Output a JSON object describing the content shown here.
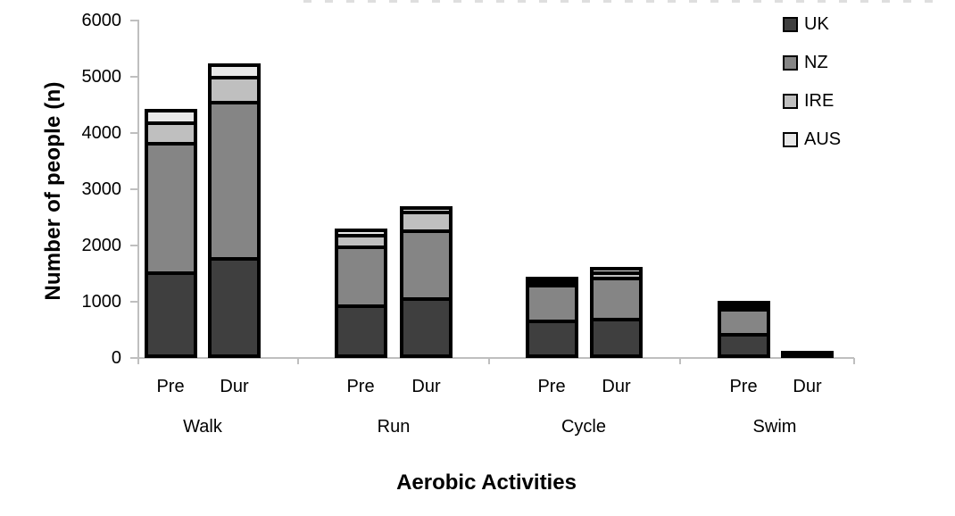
{
  "chart_data": {
    "type": "bar",
    "stacked": true,
    "title": "",
    "xlabel": "Aerobic Activities",
    "ylabel": "Number of people (n)",
    "ylim": [
      0,
      6000
    ],
    "yticks": [
      0,
      1000,
      2000,
      3000,
      4000,
      5000,
      6000
    ],
    "grid": false,
    "legend_position": "top-right",
    "categories": [
      "Walk",
      "Run",
      "Cycle",
      "Swim"
    ],
    "conditions": [
      "Pre",
      "Dur"
    ],
    "bar_order": [
      "Walk Pre",
      "Walk Dur",
      "Run Pre",
      "Run Dur",
      "Cycle Pre",
      "Cycle Dur",
      "Swim Pre",
      "Swim Dur"
    ],
    "series": [
      {
        "name": "UK",
        "color": "#3f3f3f",
        "values": [
          1480,
          1730,
          890,
          1010,
          620,
          650,
          385,
          40
        ]
      },
      {
        "name": "NZ",
        "color": "#858585",
        "values": [
          2290,
          2770,
          1050,
          1210,
          630,
          730,
          440,
          0
        ]
      },
      {
        "name": "IRE",
        "color": "#bfbfbf",
        "values": [
          370,
          450,
          200,
          330,
          65,
          90,
          70,
          0
        ]
      },
      {
        "name": "AUS",
        "color": "#e8e8e8",
        "values": [
          220,
          230,
          100,
          90,
          65,
          85,
          55,
          0
        ]
      }
    ],
    "totals": [
      4360,
      5180,
      2240,
      2640,
      1380,
      1555,
      950,
      40
    ],
    "legend_entries": [
      "UK",
      "NZ",
      "IRE",
      "AUS"
    ]
  },
  "axis_colors": {
    "line": "#bfbfbf",
    "segment_border": "#000000"
  }
}
